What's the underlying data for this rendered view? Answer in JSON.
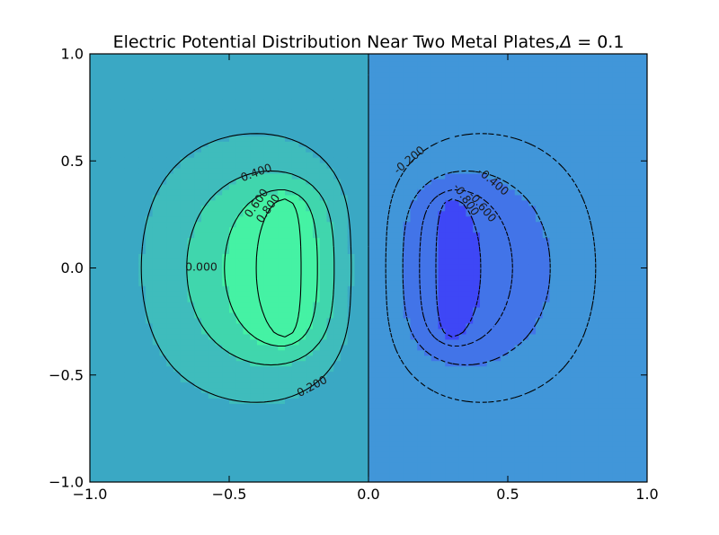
{
  "chart_data": {
    "type": "contour",
    "title": "Electric Potential Distribution Near Two Metal Plates,Δ = 0.1",
    "title_text": "Electric Potential Distribution Near Two Metal Plates,",
    "title_delta": "Δ",
    "title_eq": " = 0.1",
    "xlim": [
      -1.0,
      1.0
    ],
    "ylim": [
      -1.0,
      1.0
    ],
    "xticks": [
      {
        "value": -1.0,
        "label": "−1.0"
      },
      {
        "value": -0.5,
        "label": "−0.5"
      },
      {
        "value": 0.0,
        "label": "0.0"
      },
      {
        "value": 0.5,
        "label": "0.5"
      },
      {
        "value": 1.0,
        "label": "1.0"
      }
    ],
    "yticks": [
      {
        "value": 1.0,
        "label": "1.0"
      },
      {
        "value": 0.5,
        "label": "0.5"
      },
      {
        "value": 0.0,
        "label": "0.0"
      },
      {
        "value": -0.5,
        "label": "−0.5"
      },
      {
        "value": -1.0,
        "label": "−1.0"
      }
    ],
    "grid": false,
    "levels": [
      {
        "value": -0.8,
        "label": "-0.800"
      },
      {
        "value": -0.6,
        "label": "-0.600"
      },
      {
        "value": -0.4,
        "label": "-0.400"
      },
      {
        "value": -0.2,
        "label": "-0.200"
      },
      {
        "value": 0.0,
        "label": "0.000"
      },
      {
        "value": 0.2,
        "label": "0.200"
      },
      {
        "value": 0.4,
        "label": "0.400"
      },
      {
        "value": 0.6,
        "label": "0.600"
      },
      {
        "value": 0.8,
        "label": "0.800"
      }
    ],
    "plates": [
      {
        "x": -0.3,
        "y_range": [
          -0.3,
          0.3
        ],
        "potential": 1.0
      },
      {
        "x": 0.3,
        "y_range": [
          -0.3,
          0.3
        ],
        "potential": -1.0
      }
    ],
    "fill_colors": [
      "#3e47f6",
      "#4274e8",
      "#4196d9",
      "#3aa8c4",
      "#3fbcbc",
      "#40d6ad",
      "#45f2a4"
    ],
    "negative_linestyle": "dashed",
    "positive_linestyle": "solid"
  }
}
